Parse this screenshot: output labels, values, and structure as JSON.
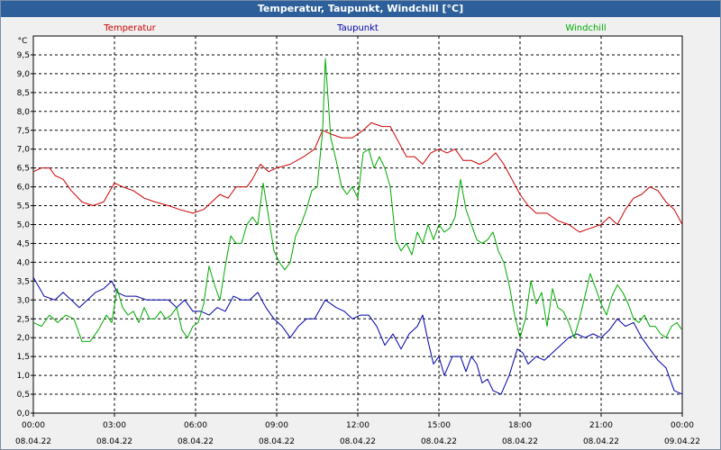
{
  "window": {
    "title": "Temperatur, Taupunkt, Windchill [°C]"
  },
  "chart_data": {
    "type": "line",
    "title": "Temperatur, Taupunkt, Windchill [°C]",
    "ylabel": "°C",
    "xlabel": "",
    "ylim": [
      0,
      10
    ],
    "xlim": [
      0,
      24
    ],
    "grid": true,
    "legend": [
      "Temperatur",
      "Taupunkt",
      "Windchill"
    ],
    "y_ticks": [
      "0.0",
      "0.5",
      "1.0",
      "1.5",
      "2.0",
      "2.5",
      "3.0",
      "3.5",
      "4.0",
      "4.5",
      "5.0",
      "5.5",
      "6.0",
      "6.5",
      "7.0",
      "7.5",
      "8.0",
      "8.5",
      "9.0",
      "9.5"
    ],
    "x_ticks": [
      {
        "time": "00:00",
        "date": "08.04.22"
      },
      {
        "time": "03:00",
        "date": "08.04.22"
      },
      {
        "time": "06:00",
        "date": "08.04.22"
      },
      {
        "time": "09:00",
        "date": "08.04.22"
      },
      {
        "time": "12:00",
        "date": "08.04.22"
      },
      {
        "time": "15:00",
        "date": "08.04.22"
      },
      {
        "time": "18:00",
        "date": "08.04.22"
      },
      {
        "time": "21:00",
        "date": "08.04.22"
      },
      {
        "time": "00:00",
        "date": "09.04.22"
      }
    ],
    "series": [
      {
        "name": "Temperatur",
        "color": "#cc0000",
        "points": [
          [
            0,
            6.4
          ],
          [
            0.3,
            6.5
          ],
          [
            0.6,
            6.5
          ],
          [
            0.8,
            6.3
          ],
          [
            1.1,
            6.2
          ],
          [
            1.4,
            5.9
          ],
          [
            1.8,
            5.6
          ],
          [
            2.2,
            5.5
          ],
          [
            2.6,
            5.6
          ],
          [
            3.0,
            6.1
          ],
          [
            3.3,
            6.0
          ],
          [
            3.7,
            5.9
          ],
          [
            4.1,
            5.7
          ],
          [
            4.5,
            5.6
          ],
          [
            5.0,
            5.5
          ],
          [
            5.4,
            5.4
          ],
          [
            5.9,
            5.3
          ],
          [
            6.3,
            5.4
          ],
          [
            6.6,
            5.6
          ],
          [
            6.9,
            5.8
          ],
          [
            7.2,
            5.7
          ],
          [
            7.5,
            6.0
          ],
          [
            7.9,
            6.0
          ],
          [
            8.1,
            6.2
          ],
          [
            8.4,
            6.6
          ],
          [
            8.7,
            6.4
          ],
          [
            9.0,
            6.5
          ],
          [
            9.5,
            6.6
          ],
          [
            10.0,
            6.8
          ],
          [
            10.4,
            7.0
          ],
          [
            10.7,
            7.5
          ],
          [
            11.0,
            7.4
          ],
          [
            11.4,
            7.3
          ],
          [
            11.8,
            7.3
          ],
          [
            12.2,
            7.5
          ],
          [
            12.5,
            7.7
          ],
          [
            12.9,
            7.6
          ],
          [
            13.2,
            7.6
          ],
          [
            13.5,
            7.2
          ],
          [
            13.8,
            6.8
          ],
          [
            14.1,
            6.8
          ],
          [
            14.4,
            6.6
          ],
          [
            14.7,
            6.9
          ],
          [
            15.0,
            7.0
          ],
          [
            15.3,
            6.9
          ],
          [
            15.6,
            7.0
          ],
          [
            15.9,
            6.7
          ],
          [
            16.2,
            6.7
          ],
          [
            16.5,
            6.6
          ],
          [
            16.8,
            6.7
          ],
          [
            17.1,
            6.9
          ],
          [
            17.4,
            6.6
          ],
          [
            17.7,
            6.2
          ],
          [
            18.0,
            5.8
          ],
          [
            18.3,
            5.5
          ],
          [
            18.6,
            5.3
          ],
          [
            19.0,
            5.3
          ],
          [
            19.4,
            5.1
          ],
          [
            19.8,
            5.0
          ],
          [
            20.2,
            4.8
          ],
          [
            20.6,
            4.9
          ],
          [
            21.0,
            5.0
          ],
          [
            21.3,
            5.2
          ],
          [
            21.6,
            5.0
          ],
          [
            21.9,
            5.4
          ],
          [
            22.2,
            5.7
          ],
          [
            22.5,
            5.8
          ],
          [
            22.8,
            6.0
          ],
          [
            23.1,
            5.9
          ],
          [
            23.4,
            5.6
          ],
          [
            23.7,
            5.4
          ],
          [
            24.0,
            5.0
          ]
        ]
      },
      {
        "name": "Taupunkt",
        "color": "#0000aa",
        "points": [
          [
            0,
            3.6
          ],
          [
            0.4,
            3.1
          ],
          [
            0.8,
            3.0
          ],
          [
            1.1,
            3.2
          ],
          [
            1.4,
            3.0
          ],
          [
            1.7,
            2.8
          ],
          [
            2.0,
            3.0
          ],
          [
            2.3,
            3.2
          ],
          [
            2.6,
            3.3
          ],
          [
            2.9,
            3.5
          ],
          [
            3.1,
            3.2
          ],
          [
            3.4,
            3.1
          ],
          [
            3.8,
            3.1
          ],
          [
            4.2,
            3.0
          ],
          [
            4.6,
            3.0
          ],
          [
            5.0,
            3.0
          ],
          [
            5.3,
            2.8
          ],
          [
            5.6,
            3.0
          ],
          [
            5.9,
            2.7
          ],
          [
            6.2,
            2.7
          ],
          [
            6.5,
            2.6
          ],
          [
            6.8,
            2.8
          ],
          [
            7.1,
            2.7
          ],
          [
            7.4,
            3.1
          ],
          [
            7.7,
            3.0
          ],
          [
            8.0,
            3.0
          ],
          [
            8.3,
            3.2
          ],
          [
            8.6,
            2.8
          ],
          [
            8.9,
            2.5
          ],
          [
            9.2,
            2.3
          ],
          [
            9.5,
            2.0
          ],
          [
            9.8,
            2.3
          ],
          [
            10.1,
            2.5
          ],
          [
            10.4,
            2.5
          ],
          [
            10.8,
            3.0
          ],
          [
            11.2,
            2.8
          ],
          [
            11.5,
            2.7
          ],
          [
            11.8,
            2.5
          ],
          [
            12.1,
            2.6
          ],
          [
            12.4,
            2.6
          ],
          [
            12.7,
            2.3
          ],
          [
            13.0,
            1.8
          ],
          [
            13.3,
            2.1
          ],
          [
            13.6,
            1.7
          ],
          [
            13.9,
            2.1
          ],
          [
            14.2,
            2.3
          ],
          [
            14.4,
            2.6
          ],
          [
            14.6,
            1.9
          ],
          [
            14.8,
            1.3
          ],
          [
            15.0,
            1.5
          ],
          [
            15.2,
            1.0
          ],
          [
            15.5,
            1.5
          ],
          [
            15.8,
            1.5
          ],
          [
            16.0,
            1.1
          ],
          [
            16.2,
            1.5
          ],
          [
            16.4,
            1.3
          ],
          [
            16.6,
            0.8
          ],
          [
            16.8,
            0.9
          ],
          [
            17.0,
            0.6
          ],
          [
            17.3,
            0.5
          ],
          [
            17.6,
            1.0
          ],
          [
            17.9,
            1.7
          ],
          [
            18.1,
            1.6
          ],
          [
            18.3,
            1.3
          ],
          [
            18.6,
            1.5
          ],
          [
            18.9,
            1.4
          ],
          [
            19.2,
            1.6
          ],
          [
            19.5,
            1.8
          ],
          [
            19.8,
            2.0
          ],
          [
            20.1,
            2.1
          ],
          [
            20.4,
            2.0
          ],
          [
            20.7,
            2.1
          ],
          [
            21.0,
            2.0
          ],
          [
            21.3,
            2.2
          ],
          [
            21.6,
            2.5
          ],
          [
            21.9,
            2.3
          ],
          [
            22.2,
            2.4
          ],
          [
            22.5,
            2.0
          ],
          [
            22.8,
            1.7
          ],
          [
            23.1,
            1.4
          ],
          [
            23.4,
            1.2
          ],
          [
            23.7,
            0.6
          ],
          [
            24.0,
            0.5
          ]
        ]
      },
      {
        "name": "Windchill",
        "color": "#00aa00",
        "points": [
          [
            0,
            2.4
          ],
          [
            0.3,
            2.3
          ],
          [
            0.6,
            2.6
          ],
          [
            0.9,
            2.4
          ],
          [
            1.2,
            2.6
          ],
          [
            1.5,
            2.5
          ],
          [
            1.8,
            1.9
          ],
          [
            2.1,
            1.9
          ],
          [
            2.4,
            2.2
          ],
          [
            2.7,
            2.6
          ],
          [
            2.9,
            2.4
          ],
          [
            3.1,
            3.3
          ],
          [
            3.3,
            2.8
          ],
          [
            3.5,
            2.6
          ],
          [
            3.7,
            2.7
          ],
          [
            3.9,
            2.4
          ],
          [
            4.1,
            2.8
          ],
          [
            4.3,
            2.5
          ],
          [
            4.5,
            2.5
          ],
          [
            4.7,
            2.7
          ],
          [
            4.9,
            2.5
          ],
          [
            5.1,
            2.6
          ],
          [
            5.3,
            2.8
          ],
          [
            5.5,
            2.2
          ],
          [
            5.7,
            2.0
          ],
          [
            5.9,
            2.3
          ],
          [
            6.1,
            2.4
          ],
          [
            6.3,
            2.9
          ],
          [
            6.5,
            3.9
          ],
          [
            6.7,
            3.4
          ],
          [
            6.9,
            3.0
          ],
          [
            7.1,
            3.9
          ],
          [
            7.3,
            4.7
          ],
          [
            7.5,
            4.5
          ],
          [
            7.7,
            4.5
          ],
          [
            7.9,
            5.0
          ],
          [
            8.1,
            5.2
          ],
          [
            8.3,
            5.0
          ],
          [
            8.5,
            6.1
          ],
          [
            8.7,
            5.2
          ],
          [
            8.9,
            4.3
          ],
          [
            9.1,
            4.0
          ],
          [
            9.3,
            3.8
          ],
          [
            9.5,
            4.0
          ],
          [
            9.7,
            4.7
          ],
          [
            9.9,
            5.0
          ],
          [
            10.1,
            5.4
          ],
          [
            10.3,
            5.9
          ],
          [
            10.5,
            6.0
          ],
          [
            10.7,
            7.5
          ],
          [
            10.8,
            9.4
          ],
          [
            11.0,
            7.3
          ],
          [
            11.2,
            6.7
          ],
          [
            11.4,
            6.0
          ],
          [
            11.6,
            5.8
          ],
          [
            11.8,
            6.0
          ],
          [
            12.0,
            5.7
          ],
          [
            12.2,
            6.9
          ],
          [
            12.4,
            7.0
          ],
          [
            12.6,
            6.5
          ],
          [
            12.8,
            6.8
          ],
          [
            13.0,
            6.5
          ],
          [
            13.2,
            6.0
          ],
          [
            13.4,
            4.6
          ],
          [
            13.6,
            4.3
          ],
          [
            13.8,
            4.5
          ],
          [
            14.0,
            4.2
          ],
          [
            14.2,
            4.8
          ],
          [
            14.4,
            4.5
          ],
          [
            14.6,
            5.0
          ],
          [
            14.8,
            4.6
          ],
          [
            15.0,
            5.0
          ],
          [
            15.2,
            4.8
          ],
          [
            15.4,
            4.9
          ],
          [
            15.6,
            5.2
          ],
          [
            15.8,
            6.2
          ],
          [
            16.0,
            5.4
          ],
          [
            16.2,
            5.0
          ],
          [
            16.4,
            4.6
          ],
          [
            16.6,
            4.5
          ],
          [
            16.8,
            4.6
          ],
          [
            17.0,
            4.8
          ],
          [
            17.2,
            4.3
          ],
          [
            17.4,
            4.0
          ],
          [
            17.6,
            3.4
          ],
          [
            17.8,
            2.6
          ],
          [
            18.0,
            2.0
          ],
          [
            18.2,
            2.5
          ],
          [
            18.4,
            3.5
          ],
          [
            18.6,
            2.9
          ],
          [
            18.8,
            3.2
          ],
          [
            19.0,
            2.3
          ],
          [
            19.2,
            3.3
          ],
          [
            19.4,
            2.8
          ],
          [
            19.6,
            2.7
          ],
          [
            19.8,
            2.4
          ],
          [
            20.0,
            2.0
          ],
          [
            20.2,
            2.5
          ],
          [
            20.4,
            3.1
          ],
          [
            20.6,
            3.7
          ],
          [
            20.8,
            3.3
          ],
          [
            21.0,
            2.9
          ],
          [
            21.2,
            2.6
          ],
          [
            21.4,
            3.1
          ],
          [
            21.6,
            3.4
          ],
          [
            21.8,
            3.2
          ],
          [
            22.0,
            2.9
          ],
          [
            22.2,
            2.5
          ],
          [
            22.4,
            2.4
          ],
          [
            22.6,
            2.6
          ],
          [
            22.8,
            2.3
          ],
          [
            23.0,
            2.3
          ],
          [
            23.2,
            2.1
          ],
          [
            23.4,
            2.0
          ],
          [
            23.6,
            2.3
          ],
          [
            23.8,
            2.4
          ],
          [
            24.0,
            2.2
          ]
        ]
      }
    ]
  }
}
